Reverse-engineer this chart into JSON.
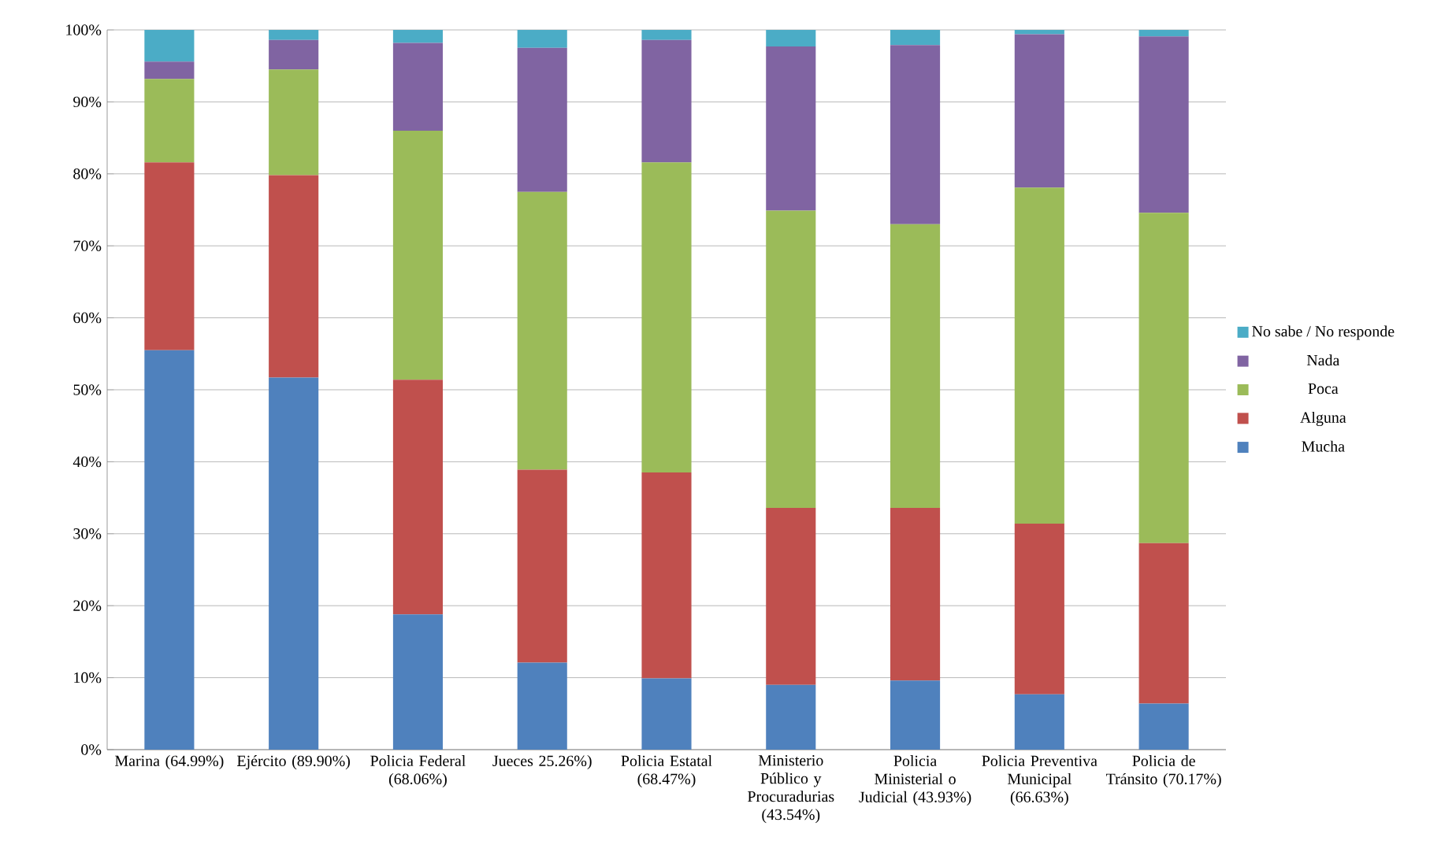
{
  "chart_data": {
    "type": "bar",
    "stacked": true,
    "categories": [
      "Marina (64.99%)",
      "Ejército (89.90%)",
      "Policia Federal (68.06%)",
      "Jueces 25.26%)",
      "Policia Estatal (68.47%)",
      "Ministerio Público y Procuradurias (43.54%)",
      "Policia Ministerial o Judicial (43.93%)",
      "Policia Preventiva Municipal (66.63%)",
      "Policia de Tránsito (70.17%)"
    ],
    "series": [
      {
        "name": "Mucha",
        "color": "#4f81bd",
        "values": [
          55.5,
          51.7,
          18.8,
          12.1,
          9.9,
          9.0,
          9.6,
          7.7,
          6.4
        ]
      },
      {
        "name": "Alguna",
        "color": "#c0504d",
        "values": [
          26.1,
          28.1,
          32.6,
          26.8,
          28.6,
          24.6,
          24.0,
          23.7,
          22.3
        ]
      },
      {
        "name": "Poca",
        "color": "#9bbb59",
        "values": [
          11.6,
          14.7,
          34.6,
          38.6,
          43.1,
          41.3,
          39.4,
          46.7,
          45.9
        ]
      },
      {
        "name": "Nada",
        "color": "#8064a2",
        "values": [
          2.4,
          4.1,
          12.2,
          20.0,
          17.0,
          22.8,
          24.9,
          21.3,
          24.5
        ]
      },
      {
        "name": "No sabe / No responde",
        "color": "#4bacc6",
        "values": [
          4.4,
          1.4,
          1.8,
          2.5,
          1.4,
          2.3,
          2.1,
          0.6,
          0.9
        ]
      }
    ],
    "ylim": [
      0,
      100
    ],
    "yticks": [
      {
        "value": 0,
        "label": "0%"
      },
      {
        "value": 10,
        "label": "10%"
      },
      {
        "value": 20,
        "label": "20%"
      },
      {
        "value": 30,
        "label": "30%"
      },
      {
        "value": 40,
        "label": "40%"
      },
      {
        "value": 50,
        "label": "50%"
      },
      {
        "value": 60,
        "label": "60%"
      },
      {
        "value": 70,
        "label": "70%"
      },
      {
        "value": 80,
        "label": "80%"
      },
      {
        "value": 90,
        "label": "90%"
      },
      {
        "value": 100,
        "label": "100%"
      }
    ],
    "grid": "y",
    "legend": "right"
  }
}
